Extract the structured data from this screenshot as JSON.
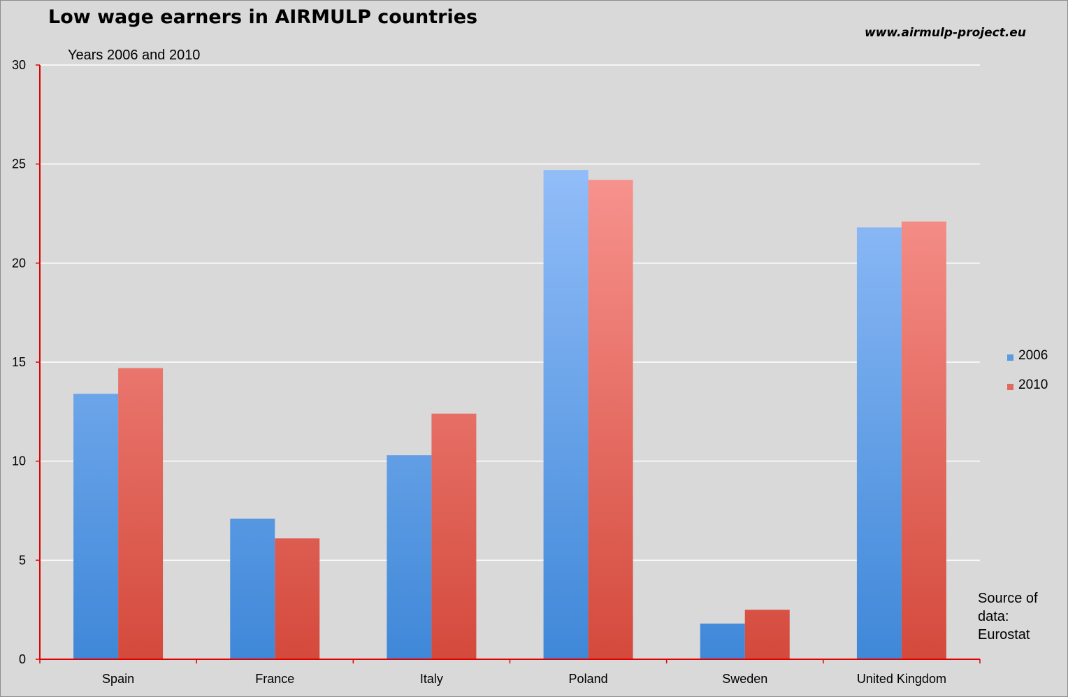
{
  "title": "Low wage earners in AIRMULP countries",
  "subtitle": "Years 2006 and 2010",
  "url": "www.airmulp-project.eu",
  "source_note": [
    "Source of",
    "data:",
    "Eurostat"
  ],
  "legend": [
    {
      "label": "2006",
      "color": "#5b9be0"
    },
    {
      "label": "2010",
      "color": "#e06a60"
    }
  ],
  "colors": {
    "background": "#d9d9d9",
    "axis": "#e00000",
    "gridline": "#ffffff",
    "series_2006_top": "#a3c8ff",
    "series_2006_bottom": "#3f88d8",
    "series_2010_top": "#ffa3a0",
    "series_2010_bottom": "#d44a3c"
  },
  "chart_data": {
    "type": "bar",
    "title": "Low wage earners in AIRMULP countries",
    "subtitle": "Years 2006 and 2010",
    "categories": [
      "Spain",
      "France",
      "Italy",
      "Poland",
      "Sweden",
      "United Kingdom"
    ],
    "series": [
      {
        "name": "2006",
        "values": [
          13.4,
          7.1,
          10.3,
          24.7,
          1.8,
          21.8
        ]
      },
      {
        "name": "2010",
        "values": [
          14.7,
          6.1,
          12.4,
          24.2,
          2.5,
          22.1
        ]
      }
    ],
    "ylim": [
      0,
      30
    ],
    "yticks": [
      0,
      5,
      10,
      15,
      20,
      25,
      30
    ],
    "grid": true,
    "legend_position": "right"
  }
}
